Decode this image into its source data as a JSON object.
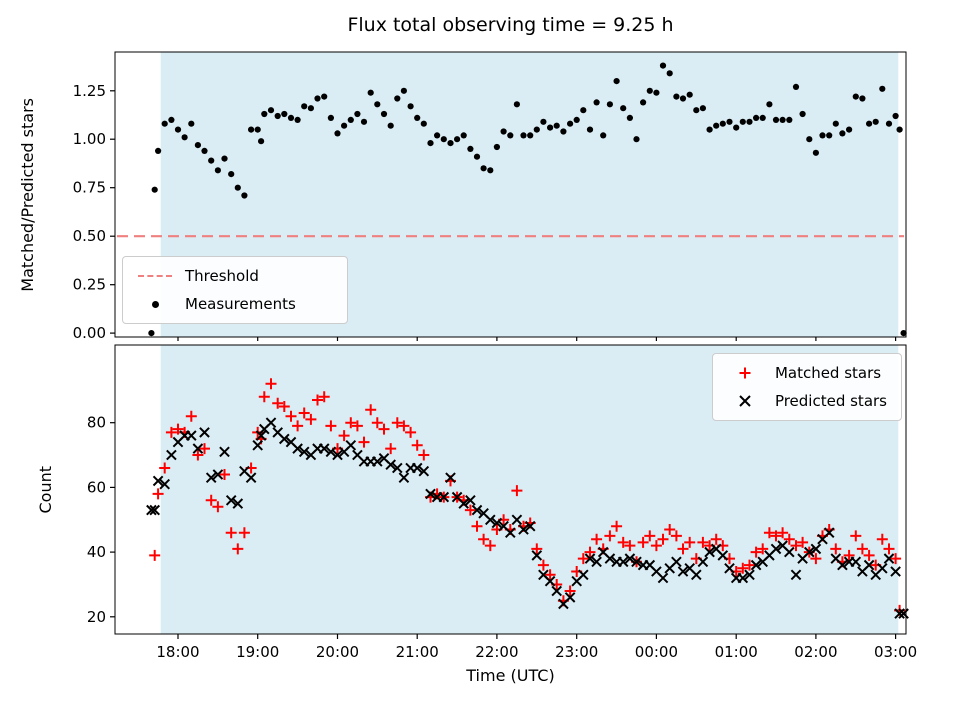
{
  "figure": {
    "title": "Flux total observing time = 9.25 h",
    "xlabel": "Time (UTC)",
    "ylabel_top": "Matched/Predicted stars",
    "ylabel_bottom": "Count"
  },
  "colors": {
    "shade": "#add8e6",
    "threshold": "#f08080",
    "matched": "#ff0000",
    "measurements": "#000000",
    "predicted": "#000000"
  },
  "legend_top": {
    "items": [
      {
        "label": "Threshold",
        "marker": "dashed-line"
      },
      {
        "label": "Measurements",
        "marker": "dot"
      }
    ]
  },
  "legend_bottom": {
    "items": [
      {
        "label": "Matched stars",
        "marker": "plus"
      },
      {
        "label": "Predicted stars",
        "marker": "x"
      }
    ]
  },
  "shade_span": {
    "start": 17.783,
    "end": 27.033
  },
  "x_axis": {
    "lim": [
      17.21,
      27.13
    ],
    "tick_values": [
      18,
      19,
      20,
      21,
      22,
      23,
      24,
      25,
      26,
      27
    ],
    "tick_labels": [
      "18:00",
      "19:00",
      "20:00",
      "21:00",
      "22:00",
      "23:00",
      "00:00",
      "01:00",
      "02:00",
      "03:00"
    ]
  },
  "chart_data": [
    {
      "type": "scatter",
      "title": "Flux total observing time = 9.25 h",
      "ylabel": "Matched/Predicted stars",
      "ylim": [
        -0.02,
        1.45
      ],
      "ytick_values": [
        0,
        0.25,
        0.5,
        0.75,
        1.0,
        1.25
      ],
      "ytick_labels": [
        "0.00",
        "0.25",
        "0.50",
        "0.75",
        "1.00",
        "1.25"
      ],
      "threshold": 0.5,
      "x": [
        17.667,
        17.708,
        17.75,
        17.833,
        17.917,
        18.0,
        18.083,
        18.167,
        18.25,
        18.333,
        18.417,
        18.5,
        18.583,
        18.667,
        18.75,
        18.833,
        18.917,
        19.0,
        19.042,
        19.083,
        19.167,
        19.25,
        19.333,
        19.417,
        19.5,
        19.583,
        19.667,
        19.75,
        19.833,
        19.917,
        20.0,
        20.083,
        20.167,
        20.25,
        20.333,
        20.417,
        20.5,
        20.583,
        20.667,
        20.75,
        20.833,
        20.917,
        21.0,
        21.083,
        21.167,
        21.25,
        21.333,
        21.417,
        21.5,
        21.583,
        21.667,
        21.75,
        21.833,
        21.917,
        22.0,
        22.083,
        22.167,
        22.25,
        22.333,
        22.417,
        22.5,
        22.583,
        22.667,
        22.75,
        22.833,
        22.917,
        23.0,
        23.083,
        23.167,
        23.25,
        23.333,
        23.417,
        23.5,
        23.583,
        23.667,
        23.75,
        23.833,
        23.917,
        24.0,
        24.083,
        24.167,
        24.25,
        24.333,
        24.417,
        24.5,
        24.583,
        24.667,
        24.75,
        24.833,
        24.917,
        25.0,
        25.083,
        25.167,
        25.25,
        25.333,
        25.417,
        25.5,
        25.583,
        25.667,
        25.75,
        25.833,
        25.917,
        26.0,
        26.083,
        26.167,
        26.25,
        26.333,
        26.417,
        26.5,
        26.583,
        26.667,
        26.75,
        26.833,
        26.917,
        27.0,
        27.05,
        27.1
      ],
      "series": [
        {
          "name": "Measurements",
          "marker": "dot",
          "y": [
            0.0,
            0.74,
            0.94,
            1.08,
            1.1,
            1.05,
            1.01,
            1.08,
            0.97,
            0.94,
            0.89,
            0.84,
            0.9,
            0.82,
            0.75,
            0.71,
            1.05,
            1.05,
            0.99,
            1.13,
            1.15,
            1.12,
            1.13,
            1.11,
            1.1,
            1.17,
            1.16,
            1.21,
            1.22,
            1.11,
            1.03,
            1.07,
            1.1,
            1.13,
            1.09,
            1.24,
            1.18,
            1.13,
            1.07,
            1.21,
            1.25,
            1.17,
            1.11,
            1.08,
            0.98,
            1.02,
            1.0,
            0.98,
            1.0,
            1.02,
            0.95,
            0.91,
            0.85,
            0.84,
            0.96,
            1.04,
            1.02,
            1.18,
            1.02,
            1.02,
            1.05,
            1.09,
            1.06,
            1.07,
            1.04,
            1.08,
            1.1,
            1.15,
            1.05,
            1.19,
            1.02,
            1.18,
            1.3,
            1.16,
            1.11,
            1.0,
            1.19,
            1.25,
            1.24,
            1.38,
            1.34,
            1.22,
            1.21,
            1.23,
            1.15,
            1.16,
            1.05,
            1.07,
            1.08,
            1.09,
            1.06,
            1.09,
            1.09,
            1.11,
            1.11,
            1.18,
            1.1,
            1.1,
            1.1,
            1.27,
            1.13,
            1.0,
            0.93,
            1.02,
            1.02,
            1.08,
            1.03,
            1.05,
            1.22,
            1.21,
            1.08,
            1.09,
            1.26,
            1.08,
            1.12,
            1.05,
            0.0
          ]
        }
      ]
    },
    {
      "type": "scatter",
      "ylabel": "Count",
      "xlabel": "Time (UTC)",
      "ylim": [
        14.7,
        104
      ],
      "ytick_values": [
        20,
        40,
        60,
        80
      ],
      "ytick_labels": [
        "20",
        "40",
        "60",
        "80"
      ],
      "x_same_as_top": true,
      "series": [
        {
          "name": "Matched stars",
          "marker": "plus",
          "y": [
            0,
            39,
            58,
            66,
            77,
            78,
            77,
            82,
            70,
            72,
            56,
            54,
            64,
            46,
            41,
            46,
            66,
            77,
            75,
            88,
            92,
            86,
            85,
            82,
            79,
            83,
            81,
            87,
            88,
            79,
            72,
            76,
            80,
            79,
            74,
            84,
            80,
            78,
            72,
            80,
            79,
            77,
            73,
            70,
            57,
            58,
            57,
            62,
            57,
            56,
            53,
            48,
            44,
            42,
            47,
            50,
            47,
            59,
            48,
            49,
            41,
            36,
            33,
            30,
            25,
            28,
            34,
            38,
            40,
            44,
            41,
            45,
            48,
            43,
            42,
            37,
            43,
            45,
            42,
            44,
            47,
            45,
            41,
            43,
            38,
            43,
            42,
            44,
            42,
            38,
            34,
            35,
            36,
            40,
            41,
            46,
            45,
            46,
            44,
            42,
            43,
            40,
            38,
            45,
            47,
            41,
            37,
            39,
            45,
            41,
            39,
            36,
            44,
            41,
            38,
            22,
            0
          ]
        },
        {
          "name": "Predicted stars",
          "marker": "x",
          "y": [
            53,
            53,
            62,
            61,
            70,
            74,
            76,
            76,
            72,
            77,
            63,
            64,
            71,
            56,
            55,
            65,
            63,
            73,
            76,
            78,
            80,
            77,
            75,
            74,
            72,
            71,
            70,
            72,
            72,
            71,
            70,
            71,
            73,
            70,
            68,
            68,
            68,
            69,
            67,
            66,
            63,
            66,
            66,
            65,
            58,
            57,
            57,
            63,
            57,
            55,
            56,
            53,
            52,
            50,
            49,
            48,
            46,
            50,
            47,
            48,
            39,
            33,
            31,
            28,
            24,
            26,
            31,
            33,
            38,
            37,
            40,
            38,
            37,
            37,
            38,
            37,
            36,
            36,
            34,
            32,
            35,
            37,
            34,
            35,
            33,
            37,
            40,
            41,
            39,
            35,
            32,
            32,
            33,
            36,
            37,
            39,
            41,
            42,
            40,
            33,
            38,
            40,
            41,
            44,
            46,
            38,
            36,
            37,
            37,
            34,
            36,
            33,
            35,
            38,
            34,
            21,
            21
          ]
        }
      ]
    }
  ]
}
